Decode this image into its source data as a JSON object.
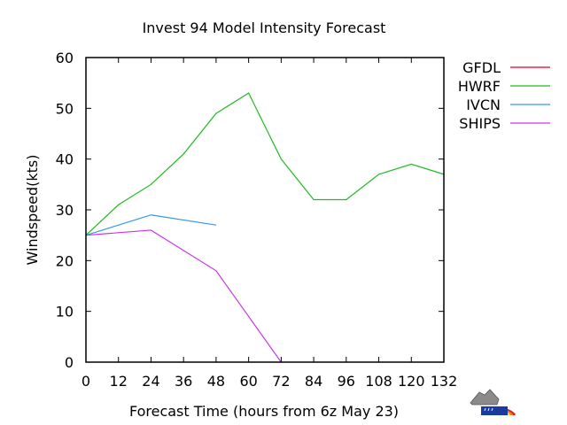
{
  "chart_data": {
    "type": "line",
    "title": "Invest 94 Model Intensity Forecast",
    "xlabel": "Forecast Time  (hours from 6z May 23)",
    "ylabel": "Windspeed(kts)",
    "xlim": [
      0,
      132
    ],
    "ylim": [
      0,
      60
    ],
    "xticks": [
      0,
      12,
      24,
      36,
      48,
      60,
      72,
      84,
      96,
      108,
      120,
      132
    ],
    "yticks": [
      0,
      10,
      20,
      30,
      40,
      50,
      60
    ],
    "grid": false,
    "legend_position": "right",
    "series": [
      {
        "name": "GFDL",
        "color": "#e0001a",
        "x": [],
        "y": []
      },
      {
        "name": "HWRF",
        "color": "#22bb22",
        "x": [
          0,
          12,
          24,
          36,
          48,
          60,
          72,
          84,
          96,
          108,
          120,
          132
        ],
        "y": [
          25,
          31,
          35,
          41,
          49,
          53,
          40,
          32,
          32,
          37,
          39,
          37
        ]
      },
      {
        "name": "IVCN",
        "color": "#3399ee",
        "x": [
          0,
          24,
          48
        ],
        "y": [
          25,
          29,
          27
        ]
      },
      {
        "name": "SHIPS",
        "color": "#cc33ee",
        "x": [
          0,
          24,
          48,
          72
        ],
        "y": [
          25,
          26,
          18,
          0
        ]
      }
    ]
  },
  "logo": {
    "icon": "weather-cloud-rainbow-icon"
  }
}
